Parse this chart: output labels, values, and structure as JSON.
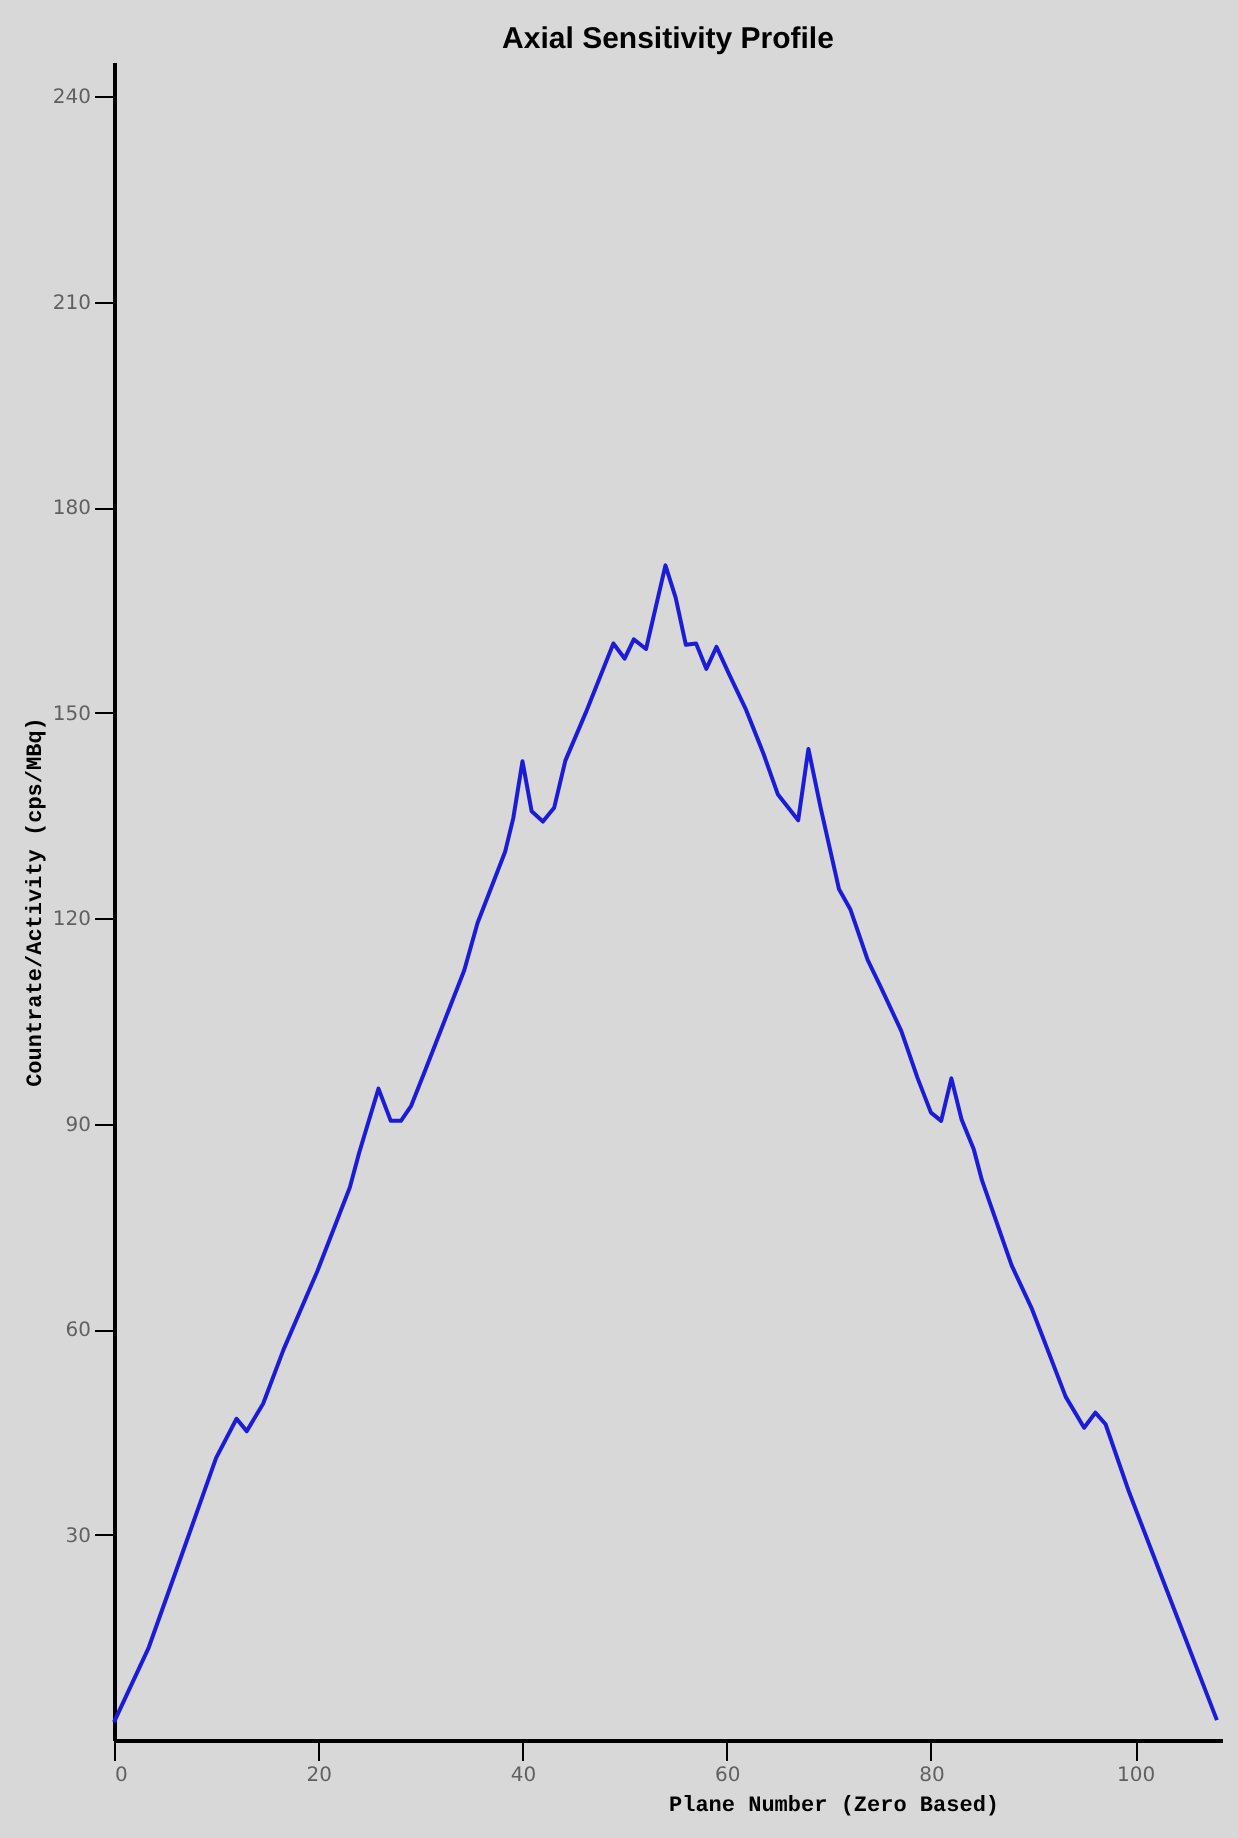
{
  "chart_data": {
    "type": "line",
    "title": "Axial Sensitivity Profile",
    "xlabel": "Plane Number (Zero Based)",
    "ylabel": "Countrate/Activity (cps/MBq)",
    "xlim": [
      0,
      108.5
    ],
    "xticks": [
      0,
      20,
      40,
      60,
      80,
      100
    ],
    "ylim": [
      0,
      245
    ],
    "yticks": [
      30,
      60,
      90,
      120,
      150,
      180,
      210,
      240
    ],
    "marker": "none",
    "line_style": "solid",
    "series": [
      {
        "color": "#1c1cd8",
        "x": [
          0,
          3.4,
          6.7,
          10,
          12,
          13,
          14.6,
          16.6,
          19.9,
          23.1,
          24,
          25.9,
          27.1,
          28.1,
          29.1,
          30.4,
          34.3,
          35.6,
          38.3,
          39.1,
          40,
          40.9,
          42,
          43.1,
          44.2,
          46.2,
          48.9,
          50,
          50.9,
          52.1,
          54,
          55,
          56,
          57,
          58,
          59,
          60.3,
          61.9,
          63.6,
          65,
          67,
          68,
          69.2,
          71,
          72.1,
          73.8,
          75.1,
          77.1,
          78.7,
          80,
          81,
          82,
          83,
          84.2,
          85,
          87.9,
          89.9,
          93.2,
          95,
          96.1,
          97.1,
          99.4,
          102.7,
          108
        ],
        "values": [
          2.6,
          13.5,
          27.3,
          41.2,
          46.9,
          45.1,
          49.1,
          57,
          68.4,
          80.7,
          85.7,
          95.1,
          90.4,
          90.4,
          92.6,
          97.5,
          112.4,
          119.3,
          129.7,
          134.6,
          142.9,
          135.6,
          134.1,
          136.1,
          143,
          150,
          160.1,
          157.9,
          160.7,
          159.3,
          171.5,
          166.8,
          159.9,
          160.1,
          156.4,
          159.6,
          155.4,
          150.4,
          144,
          138.1,
          134.3,
          144.7,
          136.1,
          124.2,
          121.3,
          113.9,
          109.9,
          103.5,
          96.6,
          91.6,
          90.4,
          96.6,
          90.6,
          86.2,
          81.7,
          69.3,
          62.9,
          50.1,
          45.6,
          47.8,
          46.1,
          36.2,
          23.4,
          2.9
        ]
      }
    ]
  }
}
